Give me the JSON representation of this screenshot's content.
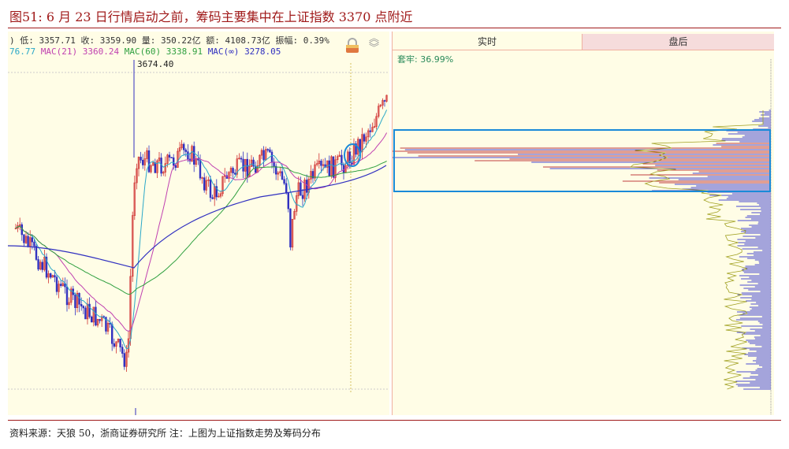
{
  "figure": {
    "title": "图51:  6 月 23 日行情启动之前，筹码主要集中在上证指数 3370 点附近",
    "source": "资料来源：天狼 50，浙商证券研究所  注：上图为上证指数走势及筹码分布"
  },
  "kline": {
    "info_line": ") 低: 3357.71 收: 3359.90 量: 350.22亿 额: 4108.73亿 振幅: 0.39%",
    "ma": [
      {
        "label": "76.77",
        "color": "#2aa8c8"
      },
      {
        "label": "MAC(21)",
        "color": "#c040b0"
      },
      {
        "label": "3360.24",
        "color": "#c040b0"
      },
      {
        "label": "MAC(60)",
        "color": "#30a040"
      },
      {
        "label": "3338.91",
        "color": "#30a040"
      },
      {
        "label": "MAC(∞)",
        "color": "#3030c0"
      },
      {
        "label": "3278.05",
        "color": "#3030c0"
      }
    ],
    "peak_label": "3674.40",
    "icons": [
      "lock-icon",
      "chevron-up-double-icon",
      "chevron-down-double-icon"
    ]
  },
  "chips": {
    "tabs": [
      "实时",
      "盘后"
    ],
    "active_tab": 0,
    "ratio_label": "套牢: 36.99%",
    "highlight_color": "#1a8ad8"
  },
  "colors": {
    "up": "#d03030",
    "down": "#3030c0",
    "accent": "#a01a1a"
  }
}
